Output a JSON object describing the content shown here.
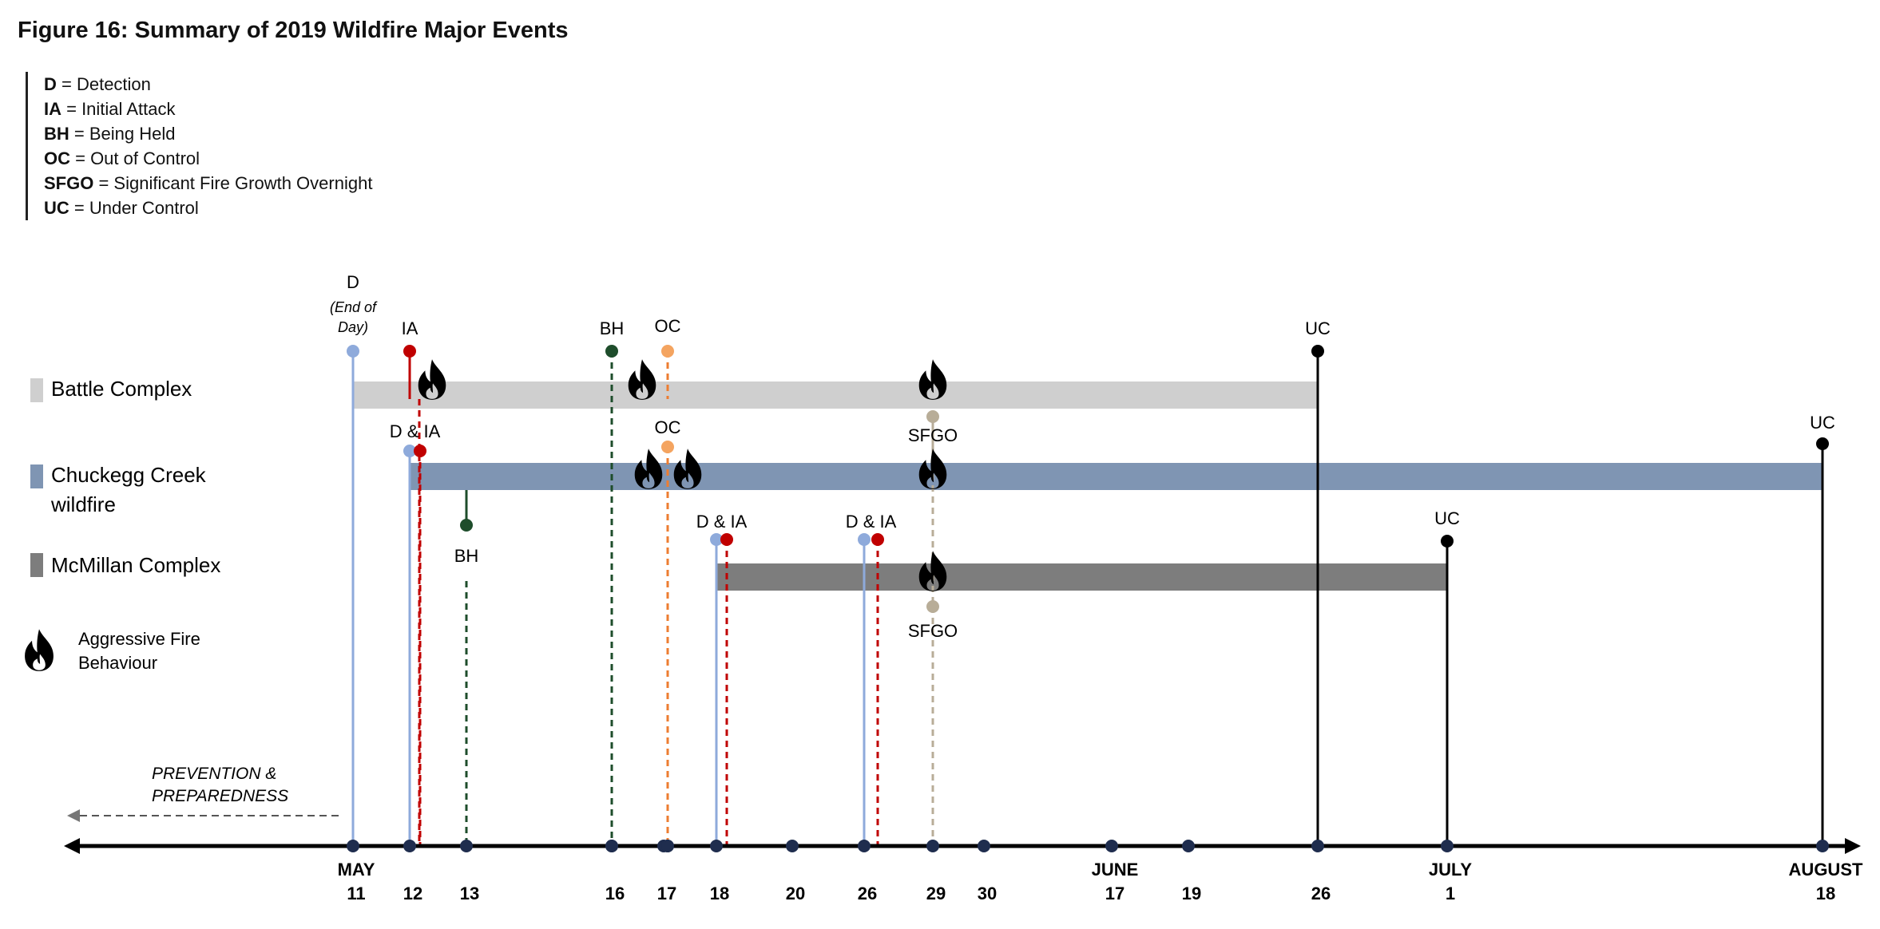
{
  "figure": {
    "title": "Figure 16: Summary of 2019 Wildfire Major Events"
  },
  "legend": {
    "items": [
      {
        "abbr": "D",
        "text": " = Detection"
      },
      {
        "abbr": "IA",
        "text": " = Initial Attack"
      },
      {
        "abbr": "BH",
        "text": " = Being Held"
      },
      {
        "abbr": "OC",
        "text": " = Out of Control"
      },
      {
        "abbr": "SFGO",
        "text": " = Significant Fire Growth Overnight"
      },
      {
        "abbr": "UC",
        "text": " = Under Control"
      }
    ],
    "fires": [
      {
        "name_lines": [
          "Battle Complex"
        ],
        "color": "#cfcfcf"
      },
      {
        "name_lines": [
          "Chuckegg Creek",
          "wildfire"
        ],
        "color": "#7f95b3"
      },
      {
        "name_lines": [
          "McMillan Complex"
        ],
        "color": "#7d7d7d"
      }
    ],
    "aggressive": {
      "lines": [
        "Aggressive Fire",
        "Behaviour"
      ],
      "icon": "flame-icon"
    }
  },
  "prevention": {
    "lines": [
      "PREVENTION &",
      "PREPAREDNESS"
    ]
  },
  "colors": {
    "detection": "#8eaadb",
    "initial_attack": "#c00000",
    "being_held": "#1e4d2b",
    "out_of_control": "#f4a460",
    "out_of_control_line": "#ed7d31",
    "sfgo": "#b8ad98",
    "under_control": "#000000"
  },
  "chart_data": {
    "type": "timeline",
    "year": 2019,
    "axis_dates": [
      {
        "day": 11,
        "month_label": "MAY"
      },
      {
        "day": 12
      },
      {
        "day": 13
      },
      {
        "day": 16
      },
      {
        "day": 17
      },
      {
        "day": 18
      },
      {
        "day": 20
      },
      {
        "day": 26
      },
      {
        "day": 29
      },
      {
        "day": 30
      },
      {
        "day": 17,
        "month_label": "JUNE"
      },
      {
        "day": 19
      },
      {
        "day": 26
      },
      {
        "day": 1,
        "month_label": "JULY"
      },
      {
        "day": 18,
        "month_label": "AUGUST"
      }
    ],
    "fires": [
      {
        "name": "Battle Complex",
        "start": "May 11",
        "end": "June 26"
      },
      {
        "name": "Chuckegg Creek wildfire",
        "start": "May 12",
        "end": "August 18"
      },
      {
        "name": "McMillan Complex",
        "start": "May 18",
        "end": "July 1"
      }
    ],
    "events": [
      {
        "fire": "Battle Complex",
        "label": "D",
        "sublabel_lines": [
          "(End of",
          "Day)"
        ],
        "date": "May 11",
        "type": "detection"
      },
      {
        "fire": "Battle Complex",
        "label": "IA",
        "date": "May 12",
        "type": "initial_attack"
      },
      {
        "fire": "Battle Complex",
        "label": "BH",
        "date": "May 16",
        "type": "being_held"
      },
      {
        "fire": "Battle Complex",
        "label": "OC",
        "date": "May 17",
        "type": "out_of_control"
      },
      {
        "fire": "Battle Complex",
        "label": "UC",
        "date": "June 26",
        "type": "under_control"
      },
      {
        "fire": "Chuckegg Creek wildfire",
        "label": "D & IA",
        "date": "May 12",
        "type": "detection_ia"
      },
      {
        "fire": "Chuckegg Creek wildfire",
        "label": "BH",
        "date": "May 13",
        "type": "being_held"
      },
      {
        "fire": "Chuckegg Creek wildfire",
        "label": "OC",
        "date": "May 17",
        "type": "out_of_control"
      },
      {
        "fire": "Chuckegg Creek wildfire",
        "label": "UC",
        "date": "August 18",
        "type": "under_control"
      },
      {
        "fire": "McMillan Complex",
        "label": "D & IA",
        "date": "May 18",
        "type": "detection_ia"
      },
      {
        "fire": "McMillan Complex",
        "label": "D & IA",
        "date": "May 26",
        "type": "detection_ia"
      },
      {
        "fire": "McMillan Complex",
        "label": "UC",
        "date": "July 1",
        "type": "under_control"
      },
      {
        "fire": "Battle Complex",
        "label": "SFGO",
        "date": "May 29",
        "type": "sfgo"
      },
      {
        "fire": "McMillan Complex",
        "label": "SFGO",
        "date": "May 29",
        "type": "sfgo"
      }
    ],
    "aggressive_fire_behaviour": [
      {
        "fire": "Battle Complex",
        "dates": [
          "May 12",
          "May 16",
          "May 29"
        ]
      },
      {
        "fire": "Chuckegg Creek wildfire",
        "dates": [
          "May 16",
          "May 17",
          "May 29"
        ]
      },
      {
        "fire": "McMillan Complex",
        "dates": [
          "May 29"
        ]
      }
    ]
  }
}
